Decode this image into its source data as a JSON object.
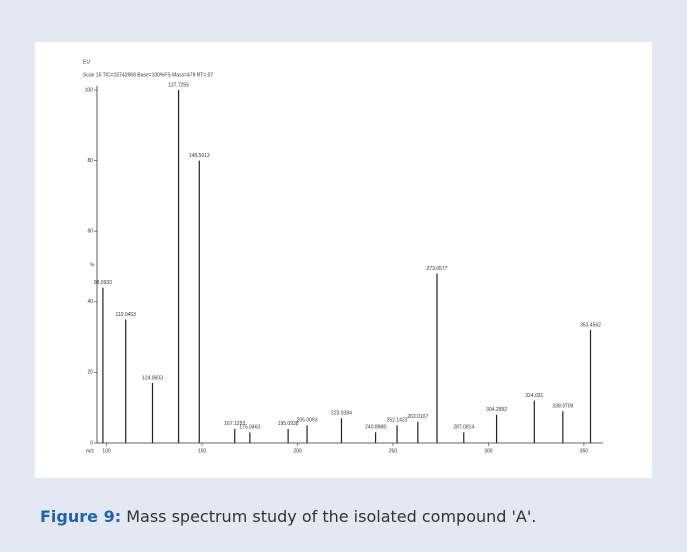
{
  "chart_data": {
    "type": "bar",
    "header": "Scan 15 TIC=15742968 Base=100%FS Mass=479 RT=.07",
    "corner_label": "EU",
    "y_label": "%",
    "x_label": "m/z",
    "x": [
      98.0933,
      110.0453,
      124.0603,
      137.7255,
      148.5613,
      167.1253,
      175.0463,
      195.0938,
      205.0093,
      223.0384,
      240.8988,
      252.1423,
      263.0107,
      273.0577,
      287.0814,
      304.2582,
      324.031,
      338.9709,
      353.4562
    ],
    "values": [
      44,
      35,
      17,
      100,
      80,
      4,
      3,
      4,
      5,
      7,
      3,
      5,
      6,
      48,
      3,
      8,
      12,
      9,
      32
    ],
    "color": "#222222",
    "xlim": [
      95,
      360
    ],
    "xticks": [
      100,
      150,
      200,
      250,
      300,
      350
    ],
    "ylim": [
      0,
      100
    ],
    "yticks": [
      0,
      20,
      40,
      60,
      80,
      100
    ]
  },
  "caption": {
    "label": "Figure 9:",
    "text": "Mass spectrum study of the isolated compound 'A'."
  }
}
